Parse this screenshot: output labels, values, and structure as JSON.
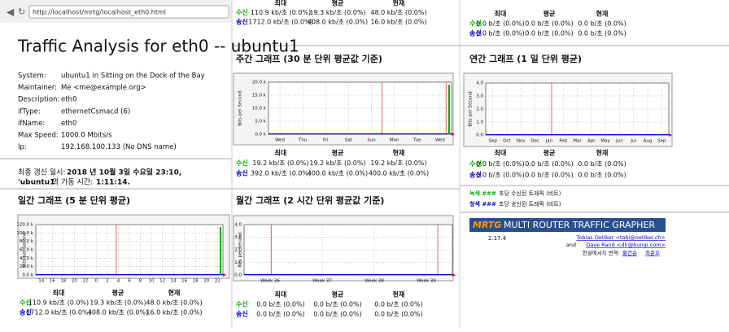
{
  "address_bar": {
    "url": "http://localhost/mrtg/localhost_eth0.html"
  },
  "header": {
    "title": "Traffic Analysis for eth0 -- ubuntu1"
  },
  "info": {
    "rows": [
      [
        "System:",
        "ubuntu1 in Sitting on the Dock of the Bay"
      ],
      [
        "Maintainer:",
        "Me <me@example.org>"
      ],
      [
        "Description:",
        "eth0"
      ],
      [
        "ifType:",
        "ethernetCsmacd (6)"
      ],
      [
        "ifName:",
        "eth0"
      ],
      [
        "Max Speed:",
        "1000.0 Mbits/s"
      ],
      [
        "Ip:",
        "192.168.100.133 (No DNS name)"
      ]
    ]
  },
  "status": {
    "update_label": "최종 갱신 일시:",
    "update_value": "2018 년 10월 3일 수요일 23:10,",
    "uptime_host": "'ubuntu1'",
    "uptime_label": "의 가동 시간:",
    "uptime_value": "1:11:14."
  },
  "stats_headers": [
    "최대",
    "평균",
    "현재"
  ],
  "rx_label": "수신",
  "tx_label": "송신",
  "top_stats_middle": {
    "rx": [
      "110.9 kb/초 (0.0%)",
      "19.3 kb/초 (0.0%)",
      "48.0 kb/초 (0.0%)"
    ],
    "tx": [
      "1712.0 kb/초 (0.0%)",
      "408.0 kb/초 (0.0%)",
      "16.0 kb/초 (0.0%)"
    ]
  },
  "top_stats_right": {
    "rx": [
      "0.0 b/초 (0.0%)",
      "0.0 b/초 (0.0%)",
      "0.0 b/초 (0.0%)"
    ],
    "tx": [
      "0.0 b/초 (0.0%)",
      "0.0 b/초 (0.0%)",
      "0.0 b/초 (0.0%)"
    ]
  },
  "graphs": {
    "daily": {
      "title": "일간 그래프 (5 분 단위 평균)",
      "y_label": "Bits per Second",
      "yticks": [
        "120.0 k",
        "100.0 k",
        "80.0 k",
        "60.0 k",
        "40.0 k",
        "20.0 k",
        "0.0 k"
      ],
      "xticks": [
        "14",
        "16",
        "18",
        "20",
        "22",
        "0",
        "2",
        "4",
        "6",
        "8",
        "10",
        "12",
        "14",
        "16",
        "18",
        "20",
        "22"
      ],
      "stats": {
        "rx": [
          "110.9 kb/초 (0.0%)",
          "19.3 kb/초 (0.0%)",
          "48.0 kb/초 (0.0%)"
        ],
        "tx": [
          "1712.0 kb/초 (0.0%)",
          "408.0 kb/초 (0.0%)",
          "16.0 kb/초 (0.0%)"
        ]
      }
    },
    "weekly": {
      "title": "주간 그래프 (30 분 단위 평균값 기준)",
      "y_label": "Bits per Second",
      "yticks": [
        "20.0 k",
        "15.0 k",
        "10.0 k",
        "5.0 k",
        "0.0 k"
      ],
      "xticks": [
        "Wed",
        "Thu",
        "Fri",
        "Sat",
        "Sun",
        "Mon",
        "Tue",
        "Wed"
      ],
      "stats": {
        "rx": [
          "19.2 kb/초 (0.0%)",
          "19.2 kb/초 (0.0%)",
          "19.2 kb/초 (0.0%)"
        ],
        "tx": [
          "392.0 kb/초 (0.0%)",
          "400.0 kb/초 (0.0%)",
          "400.0 kb/초 (0.0%)"
        ]
      }
    },
    "monthly": {
      "title": "월간 그래프 (2 시간 단위 평균값 기준)",
      "y_label": "Bits per Second",
      "yticks": [
        "4.0",
        "3.0",
        "2.0",
        "1.0",
        "0.0"
      ],
      "xticks": [
        "Week 36",
        "Week 37",
        "Week 38",
        "Week 39"
      ],
      "stats": {
        "rx": [
          "0.0 b/초 (0.0%)",
          "0.0 b/초 (0.0%)",
          "0.0 b/초 (0.0%)"
        ],
        "tx": [
          "0.0 b/초 (0.0%)",
          "0.0 b/초 (0.0%)",
          "0.0 b/초 (0.0%)"
        ]
      }
    },
    "yearly": {
      "title": "연간 그래프 (1 일 단위 평균)",
      "y_label": "Bits per Second",
      "yticks": [
        "4.0",
        "3.0",
        "2.0",
        "1.0",
        "0.0"
      ],
      "xticks": [
        "Sep",
        "Oct",
        "Nov",
        "Dec",
        "Jan",
        "Feb",
        "Mar",
        "Apr",
        "May",
        "Jun",
        "Jul",
        "Aug",
        "Sep"
      ],
      "stats": {
        "rx": [
          "0.0 b/초 (0.0%)",
          "0.0 b/초 (0.0%)",
          "0.0 b/초 (0.0%)"
        ],
        "tx": [
          "0.0 b/초 (0.0%)",
          "0.0 b/초 (0.0%)",
          "0.0 b/초 (0.0%)"
        ]
      }
    }
  },
  "legend": [
    {
      "key": "녹색 ###",
      "text": "초당 수신된 트래픽 (비트)"
    },
    {
      "key": "청색 ###",
      "text": "초당 송신된 트래픽 (비트)"
    }
  ],
  "footer": {
    "logo": "MRTG",
    "logo_text": "MULTI ROUTER TRAFFIC GRAPHER",
    "version": "2.17.4",
    "author1": "Tobias Oetiker <tobi@oetiker.ch>",
    "and_word": "and",
    "author2": "Dave Rand <dlr@bungi.com>",
    "translation_label": "한글에서지 번역:",
    "translators": [
      "황건순",
      "최준호"
    ]
  }
}
